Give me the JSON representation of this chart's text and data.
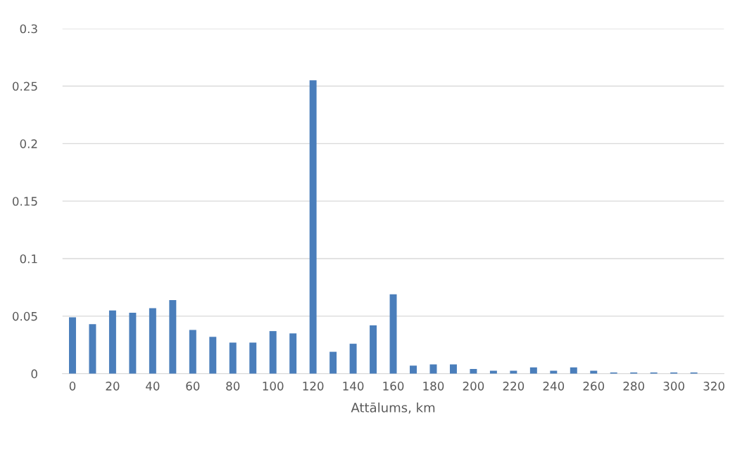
{
  "chart_data": {
    "type": "bar",
    "xlabel": "Attālums, km",
    "categories": [
      "0",
      null,
      "20",
      null,
      "40",
      null,
      "60",
      null,
      "80",
      null,
      "100",
      null,
      "120",
      null,
      "140",
      null,
      "160",
      null,
      "180",
      null,
      "200",
      null,
      "220",
      null,
      "240",
      null,
      "260",
      null,
      "280",
      null,
      "300",
      null,
      "320"
    ],
    "values": [
      0.049,
      0.043,
      0.055,
      0.053,
      0.057,
      0.064,
      0.038,
      0.032,
      0.027,
      0.027,
      0.037,
      0.035,
      0.255,
      0.019,
      0.026,
      0.042,
      0.069,
      0.007,
      0.008,
      0.008,
      0.004,
      0.0025,
      0.0025,
      0.0055,
      0.0025,
      0.0055,
      0.0025,
      0.001,
      0.001,
      0.001,
      0.001,
      0.001,
      0
    ],
    "color": "#4a7ebb",
    "ylim": [
      0,
      0.3
    ],
    "yticks": [
      {
        "value": 0,
        "label": "0"
      },
      0.05,
      {
        "value": 0.1,
        "label": "0.1"
      },
      0.15,
      {
        "value": 0.2,
        "label": "0.2"
      },
      0.25,
      {
        "value": 0.3,
        "label": "0.3"
      }
    ],
    "grid": "y"
  }
}
